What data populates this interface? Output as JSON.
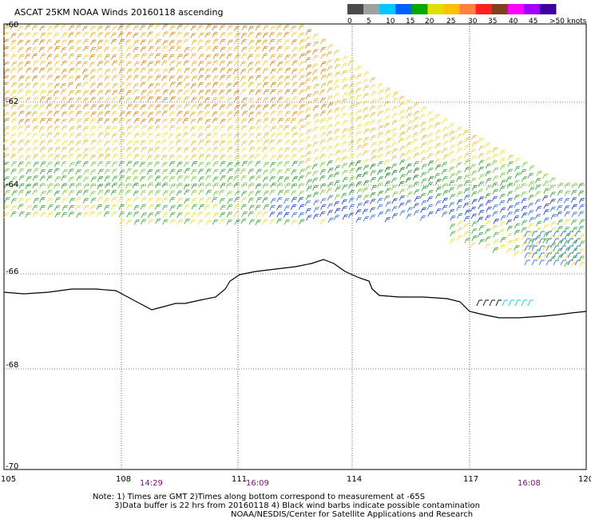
{
  "title": "ASCAT 25KM NOAA Winds 20160118 ascending",
  "legend": {
    "labels": [
      "0",
      "5",
      "10",
      "15",
      "20",
      "25",
      "30",
      "35",
      "40",
      "45",
      ">50 knots"
    ],
    "colors": [
      "#4a4a4a",
      "#a0a0a0",
      "#00c8ff",
      "#0060ff",
      "#00a800",
      "#e0e000",
      "#ffc000",
      "#ff8040",
      "#ff2020",
      "#804020",
      "#ff00ff",
      "#a000ff",
      "#4000a0"
    ]
  },
  "axes": {
    "lat_labels": [
      "-60",
      "-62",
      "-64",
      "-66",
      "-68",
      "-70"
    ],
    "lon_labels": [
      "105",
      "108",
      "111",
      "114",
      "117",
      "120"
    ]
  },
  "times": [
    "14:29",
    "16:09",
    "16:08"
  ],
  "notes": [
    "Note: 1) Times are GMT 2)Times along bottom correspond to measurement at -65S",
    "3)Data buffer is 22 hrs from 20160118 4) Black wind barbs indicate possible contamination",
    "NOAA/NESDIS/Center for Satellite Applications and Research"
  ]
}
